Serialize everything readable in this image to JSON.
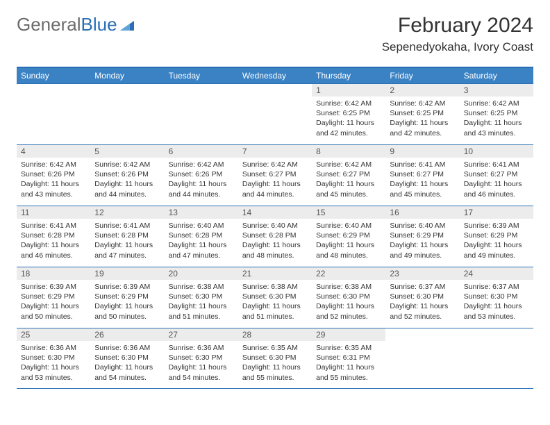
{
  "logo": {
    "word1": "General",
    "word2": "Blue"
  },
  "title": "February 2024",
  "location": "Sepenedyokaha, Ivory Coast",
  "colors": {
    "header_bg": "#3a82c4",
    "header_border": "#2a6fb5",
    "cell_border": "#2a6fb5",
    "daynum_bg": "#ececec",
    "text": "#333333",
    "logo_gray": "#6b6b6b",
    "logo_blue": "#2a6fb5",
    "page_bg": "#ffffff"
  },
  "typography": {
    "title_fontsize": 30,
    "location_fontsize": 17,
    "weekday_fontsize": 12,
    "daynum_fontsize": 12,
    "cell_fontsize": 10.5
  },
  "weekdays": [
    "Sunday",
    "Monday",
    "Tuesday",
    "Wednesday",
    "Thursday",
    "Friday",
    "Saturday"
  ],
  "weeks": [
    [
      null,
      null,
      null,
      null,
      {
        "n": "1",
        "sr": "6:42 AM",
        "ss": "6:25 PM",
        "dl": "11 hours and 42 minutes."
      },
      {
        "n": "2",
        "sr": "6:42 AM",
        "ss": "6:25 PM",
        "dl": "11 hours and 42 minutes."
      },
      {
        "n": "3",
        "sr": "6:42 AM",
        "ss": "6:25 PM",
        "dl": "11 hours and 43 minutes."
      }
    ],
    [
      {
        "n": "4",
        "sr": "6:42 AM",
        "ss": "6:26 PM",
        "dl": "11 hours and 43 minutes."
      },
      {
        "n": "5",
        "sr": "6:42 AM",
        "ss": "6:26 PM",
        "dl": "11 hours and 44 minutes."
      },
      {
        "n": "6",
        "sr": "6:42 AM",
        "ss": "6:26 PM",
        "dl": "11 hours and 44 minutes."
      },
      {
        "n": "7",
        "sr": "6:42 AM",
        "ss": "6:27 PM",
        "dl": "11 hours and 44 minutes."
      },
      {
        "n": "8",
        "sr": "6:42 AM",
        "ss": "6:27 PM",
        "dl": "11 hours and 45 minutes."
      },
      {
        "n": "9",
        "sr": "6:41 AM",
        "ss": "6:27 PM",
        "dl": "11 hours and 45 minutes."
      },
      {
        "n": "10",
        "sr": "6:41 AM",
        "ss": "6:27 PM",
        "dl": "11 hours and 46 minutes."
      }
    ],
    [
      {
        "n": "11",
        "sr": "6:41 AM",
        "ss": "6:28 PM",
        "dl": "11 hours and 46 minutes."
      },
      {
        "n": "12",
        "sr": "6:41 AM",
        "ss": "6:28 PM",
        "dl": "11 hours and 47 minutes."
      },
      {
        "n": "13",
        "sr": "6:40 AM",
        "ss": "6:28 PM",
        "dl": "11 hours and 47 minutes."
      },
      {
        "n": "14",
        "sr": "6:40 AM",
        "ss": "6:28 PM",
        "dl": "11 hours and 48 minutes."
      },
      {
        "n": "15",
        "sr": "6:40 AM",
        "ss": "6:29 PM",
        "dl": "11 hours and 48 minutes."
      },
      {
        "n": "16",
        "sr": "6:40 AM",
        "ss": "6:29 PM",
        "dl": "11 hours and 49 minutes."
      },
      {
        "n": "17",
        "sr": "6:39 AM",
        "ss": "6:29 PM",
        "dl": "11 hours and 49 minutes."
      }
    ],
    [
      {
        "n": "18",
        "sr": "6:39 AM",
        "ss": "6:29 PM",
        "dl": "11 hours and 50 minutes."
      },
      {
        "n": "19",
        "sr": "6:39 AM",
        "ss": "6:29 PM",
        "dl": "11 hours and 50 minutes."
      },
      {
        "n": "20",
        "sr": "6:38 AM",
        "ss": "6:30 PM",
        "dl": "11 hours and 51 minutes."
      },
      {
        "n": "21",
        "sr": "6:38 AM",
        "ss": "6:30 PM",
        "dl": "11 hours and 51 minutes."
      },
      {
        "n": "22",
        "sr": "6:38 AM",
        "ss": "6:30 PM",
        "dl": "11 hours and 52 minutes."
      },
      {
        "n": "23",
        "sr": "6:37 AM",
        "ss": "6:30 PM",
        "dl": "11 hours and 52 minutes."
      },
      {
        "n": "24",
        "sr": "6:37 AM",
        "ss": "6:30 PM",
        "dl": "11 hours and 53 minutes."
      }
    ],
    [
      {
        "n": "25",
        "sr": "6:36 AM",
        "ss": "6:30 PM",
        "dl": "11 hours and 53 minutes."
      },
      {
        "n": "26",
        "sr": "6:36 AM",
        "ss": "6:30 PM",
        "dl": "11 hours and 54 minutes."
      },
      {
        "n": "27",
        "sr": "6:36 AM",
        "ss": "6:30 PM",
        "dl": "11 hours and 54 minutes."
      },
      {
        "n": "28",
        "sr": "6:35 AM",
        "ss": "6:30 PM",
        "dl": "11 hours and 55 minutes."
      },
      {
        "n": "29",
        "sr": "6:35 AM",
        "ss": "6:31 PM",
        "dl": "11 hours and 55 minutes."
      },
      null,
      null
    ]
  ],
  "labels": {
    "sunrise": "Sunrise: ",
    "sunset": "Sunset: ",
    "daylight": "Daylight: "
  }
}
